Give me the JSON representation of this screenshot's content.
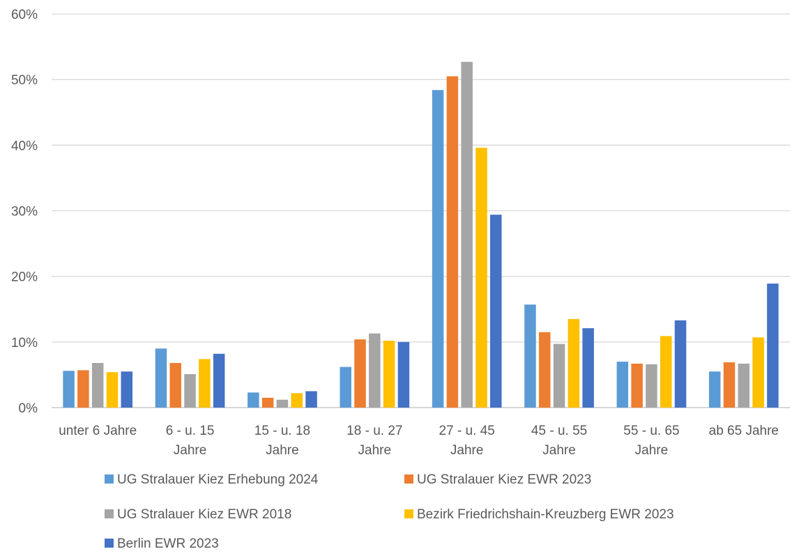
{
  "chart_data": {
    "type": "bar",
    "title": "",
    "xlabel": "",
    "ylabel": "",
    "ylim": [
      0,
      60
    ],
    "yticks": [
      "0%",
      "10%",
      "20%",
      "30%",
      "40%",
      "50%",
      "60%"
    ],
    "grid": true,
    "legend_position": "bottom",
    "categories": [
      [
        "unter 6 Jahre"
      ],
      [
        "6 - u. 15",
        "Jahre"
      ],
      [
        "15 - u. 18",
        "Jahre"
      ],
      [
        "18 - u. 27",
        "Jahre"
      ],
      [
        "27 - u. 45",
        "Jahre"
      ],
      [
        "45 - u. 55",
        "Jahre"
      ],
      [
        "55 - u. 65",
        "Jahre"
      ],
      [
        "ab 65 Jahre"
      ]
    ],
    "series": [
      {
        "name": "UG Stralauer Kiez Erhebung 2024",
        "color": "#5B9BD5",
        "values": [
          5.6,
          9.0,
          2.3,
          6.2,
          48.4,
          15.7,
          7.0,
          5.5
        ]
      },
      {
        "name": "UG Stralauer Kiez EWR 2023",
        "color": "#ED7D31",
        "values": [
          5.7,
          6.8,
          1.5,
          10.4,
          50.5,
          11.5,
          6.7,
          6.9
        ]
      },
      {
        "name": "UG Stralauer Kiez EWR 2018",
        "color": "#A5A5A5",
        "values": [
          6.8,
          5.1,
          1.2,
          11.3,
          52.7,
          9.7,
          6.6,
          6.7
        ]
      },
      {
        "name": "Bezirk Friedrichshain-Kreuzberg EWR 2023",
        "color": "#FFC000",
        "values": [
          5.4,
          7.4,
          2.2,
          10.2,
          39.6,
          13.5,
          10.9,
          10.7
        ]
      },
      {
        "name": "Berlin EWR 2023",
        "color": "#4472C4",
        "values": [
          5.5,
          8.2,
          2.5,
          10.0,
          29.4,
          12.1,
          13.3,
          18.9
        ]
      }
    ]
  }
}
